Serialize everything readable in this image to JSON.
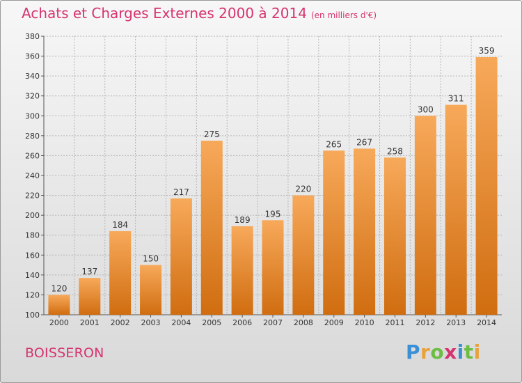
{
  "header": {
    "title": "Achats et Charges Externes 2000 à 2014",
    "subtitle": "(en milliers d'€)"
  },
  "footer": {
    "commune": "BOISSERON",
    "brand": "Proxiti"
  },
  "colors": {
    "title": "#d6336f",
    "bar_top": "#f7a95a",
    "bar_bottom": "#d06d10",
    "grid": "#b5b5b5"
  },
  "chart_data": {
    "type": "bar",
    "title": "Achats et Charges Externes 2000 à 2014",
    "subtitle": "(en milliers d'€)",
    "xlabel": "",
    "ylabel": "",
    "categories": [
      "2000",
      "2001",
      "2002",
      "2003",
      "2004",
      "2005",
      "2006",
      "2007",
      "2008",
      "2009",
      "2010",
      "2011",
      "2012",
      "2013",
      "2014"
    ],
    "values": [
      120,
      137,
      184,
      150,
      217,
      275,
      189,
      195,
      220,
      265,
      267,
      258,
      300,
      311,
      359
    ],
    "ylim": [
      100,
      380
    ],
    "yticks": [
      100,
      120,
      140,
      160,
      180,
      200,
      220,
      240,
      260,
      280,
      300,
      320,
      340,
      360,
      380
    ],
    "grid": "horizontal-dashed",
    "legend": "none"
  }
}
